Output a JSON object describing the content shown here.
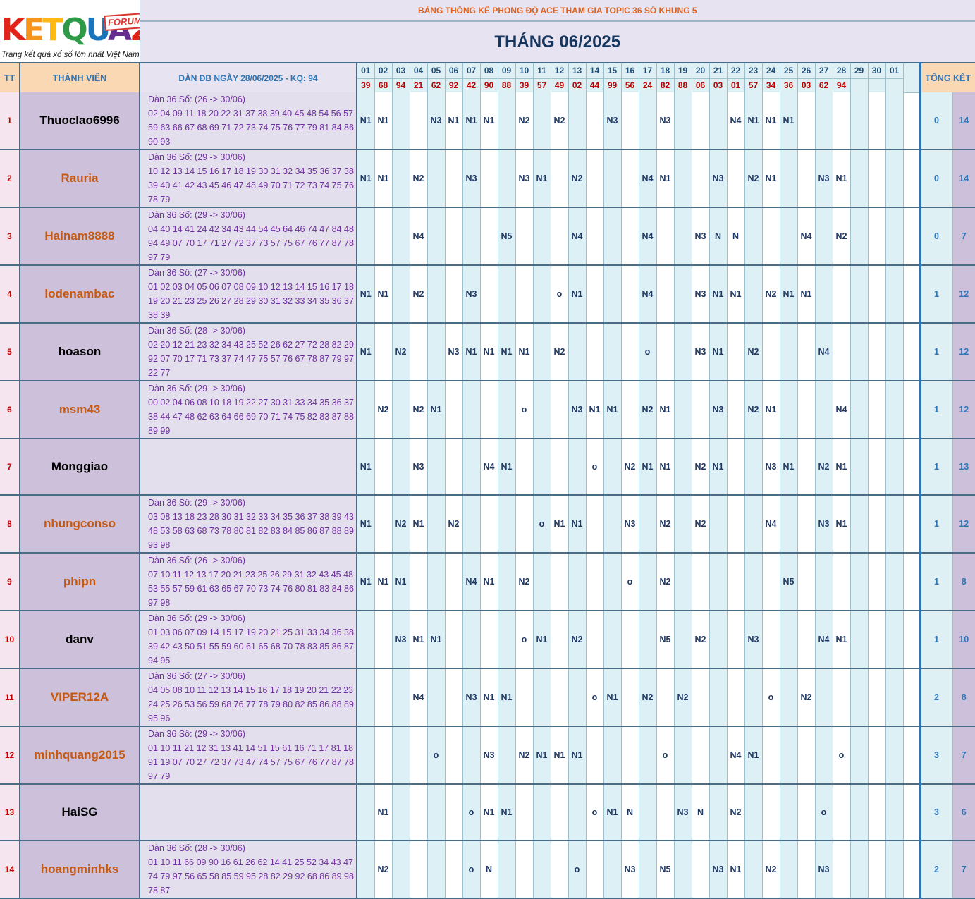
{
  "logo": {
    "letters": [
      "K",
      "E",
      "T",
      "Q",
      "U",
      "A",
      "2"
    ],
    "letter_colors": [
      "#e2231a",
      "#f7941d",
      "#fdb913",
      "#2e9a48",
      "#1b75bc",
      "#662d91",
      "#e2231a"
    ],
    "forum": "FORUM",
    "tagline": "Trang kết quả xổ số lớn nhất Việt Nam"
  },
  "title": "BẢNG THỐNG KÊ PHONG ĐỘ ACE THAM GIA TOPIC 36 SỐ KHUNG 5",
  "month": "THÁNG 06/2025",
  "headers": {
    "tt": "TT",
    "member": "THÀNH VIÊN",
    "dan": "DÀN ĐB NGÀY 28/06/2025 - KQ: 94",
    "summary": "TỔNG KẾT"
  },
  "days": [
    "01",
    "02",
    "03",
    "04",
    "05",
    "06",
    "07",
    "08",
    "09",
    "10",
    "11",
    "12",
    "13",
    "14",
    "15",
    "16",
    "17",
    "18",
    "19",
    "20",
    "21",
    "22",
    "23",
    "24",
    "25",
    "26",
    "27",
    "28",
    "29",
    "30",
    "01"
  ],
  "results": [
    "39",
    "68",
    "94",
    "21",
    "62",
    "92",
    "42",
    "90",
    "88",
    "39",
    "57",
    "49",
    "02",
    "44",
    "99",
    "56",
    "24",
    "82",
    "88",
    "06",
    "03",
    "01",
    "57",
    "34",
    "36",
    "03",
    "62",
    "94",
    "",
    "",
    ""
  ],
  "rows": [
    {
      "tt": "1",
      "name": "Thuoclao6996",
      "name_color": "#000000",
      "dan": [
        "Dàn 36 Số: (26 -> 30/06)",
        "02 04 09 11 18 20 22 31 37 38 39 40 45 48 54 56 57",
        "59 63 66 67 68 69 71 72 73 74 75 76 77 79 81 84 86",
        "90 93"
      ],
      "cells": [
        "N1",
        "N1",
        "",
        "",
        "N3",
        "N1",
        "N1",
        "N1",
        "",
        "N2",
        "",
        "N2",
        "",
        "",
        "N3",
        "",
        "",
        "N3",
        "",
        "",
        "",
        "N4",
        "N1",
        "N1",
        "N1",
        "",
        "",
        "",
        "",
        "",
        ""
      ],
      "s1": "0",
      "s2": "14"
    },
    {
      "tt": "2",
      "name": "Rauria",
      "name_color": "#c65911",
      "dan": [
        "Dàn 36 Số: (29 -> 30/06)",
        "10 12 13 14 15 16 17 18 19 30 31 32 34 35 36 37 38",
        "39 40 41 42 43 45 46 47 48 49 70 71 72 73 74 75 76",
        "78 79"
      ],
      "cells": [
        "N1",
        "N1",
        "",
        "N2",
        "",
        "",
        "N3",
        "",
        "",
        "N3",
        "N1",
        "",
        "N2",
        "",
        "",
        "",
        "N4",
        "N1",
        "",
        "",
        "N3",
        "",
        "N2",
        "N1",
        "",
        "",
        "N3",
        "N1",
        "",
        "",
        ""
      ],
      "s1": "0",
      "s2": "14"
    },
    {
      "tt": "3",
      "name": "Hainam8888",
      "name_color": "#c65911",
      "dan": [
        "Dàn 36 Số: (29 -> 30/06)",
        "04 40 14 41 24 42 34 43 44 54 45 64 46 74 47 84 48",
        "94 49 07 70 17 71 27 72 37 73 57 75 67 76 77 87 78",
        "97 79"
      ],
      "cells": [
        "",
        "",
        "",
        "N4",
        "",
        "",
        "",
        "",
        "N5",
        "",
        "",
        "",
        "N4",
        "",
        "",
        "",
        "N4",
        "",
        "",
        "N3",
        "N",
        "N",
        "",
        "",
        "",
        "N4",
        "",
        "N2",
        "",
        "",
        ""
      ],
      "s1": "0",
      "s2": "7"
    },
    {
      "tt": "4",
      "name": "lodenambac",
      "name_color": "#c65911",
      "dan": [
        "Dàn 36 Số: (27 -> 30/06)",
        "01 02 03 04 05 06 07 08 09 10 12 13 14 15 16 17 18",
        "19 20 21 23 25 26 27 28 29 30 31 32 33 34 35 36 37",
        "38 39"
      ],
      "cells": [
        "N1",
        "N1",
        "",
        "N2",
        "",
        "",
        "N3",
        "",
        "",
        "",
        "",
        "o",
        "N1",
        "",
        "",
        "",
        "N4",
        "",
        "",
        "N3",
        "N1",
        "N1",
        "",
        "N2",
        "N1",
        "N1",
        "",
        "",
        "",
        "",
        ""
      ],
      "s1": "1",
      "s2": "12"
    },
    {
      "tt": "5",
      "name": "hoason",
      "name_color": "#000000",
      "dan": [
        "Dàn 36 Số: (28 -> 30/06)",
        "02 20 12 21 23 32 34 43 25 52 26 62 27 72 28 82 29",
        "92 07 70 17 71 73 37 74 47 75 57 76 67 78 87 79 97",
        "22 77"
      ],
      "cells": [
        "N1",
        "",
        "N2",
        "",
        "",
        "N3",
        "N1",
        "N1",
        "N1",
        "N1",
        "",
        "N2",
        "",
        "",
        "",
        "",
        "o",
        "",
        "",
        "N3",
        "N1",
        "",
        "N2",
        "",
        "",
        "",
        "N4",
        "",
        "",
        "",
        ""
      ],
      "s1": "1",
      "s2": "12"
    },
    {
      "tt": "6",
      "name": "msm43",
      "name_color": "#c65911",
      "dan": [
        "Dàn 36 Số: (29 -> 30/06)",
        "00 02 04 06 08 10 18 19 22 27 30 31 33 34 35 36 37",
        "38 44 47 48 62 63 64 66 69 70 71 74 75 82 83 87 88",
        "89 99"
      ],
      "cells": [
        "",
        "N2",
        "",
        "N2",
        "N1",
        "",
        "",
        "",
        "",
        "o",
        "",
        "",
        "N3",
        "N1",
        "N1",
        "",
        "N2",
        "N1",
        "",
        "",
        "N3",
        "",
        "N2",
        "N1",
        "",
        "",
        "",
        "N4",
        "",
        "",
        ""
      ],
      "s1": "1",
      "s2": "12"
    },
    {
      "tt": "7",
      "name": "Monggiao",
      "name_color": "#000000",
      "dan": [],
      "cells": [
        "N1",
        "",
        "",
        "N3",
        "",
        "",
        "",
        "N4",
        "N1",
        "",
        "",
        "",
        "",
        "o",
        "",
        "N2",
        "N1",
        "N1",
        "",
        "N2",
        "N1",
        "",
        "",
        "N3",
        "N1",
        "",
        "N2",
        "N1",
        "",
        "",
        ""
      ],
      "s1": "1",
      "s2": "13"
    },
    {
      "tt": "8",
      "name": "nhungconso",
      "name_color": "#c65911",
      "dan": [
        "Dàn 36 Số: (29 -> 30/06)",
        "03 08 13 18 23 28 30 31 32 33 34 35 36 37 38 39 43",
        "48 53 58 63 68 73 78 80 81 82 83 84 85 86 87 88 89",
        "93 98"
      ],
      "cells": [
        "N1",
        "",
        "N2",
        "N1",
        "",
        "N2",
        "",
        "",
        "",
        "",
        "o",
        "N1",
        "N1",
        "",
        "",
        "N3",
        "",
        "N2",
        "",
        "N2",
        "",
        "",
        "",
        "N4",
        "",
        "",
        "N3",
        "N1",
        "",
        "",
        ""
      ],
      "s1": "1",
      "s2": "12"
    },
    {
      "tt": "9",
      "name": "phipn",
      "name_color": "#c65911",
      "dan": [
        "Dàn 36 Số: (26 -> 30/06)",
        "07 10 11 12 13 17 20 21 23 25 26 29 31 32 43 45 48",
        "53 55 57 59 61 63 65 67 70 73 74 76 80 81 83 84 86",
        "97 98"
      ],
      "cells": [
        "N1",
        "N1",
        "N1",
        "",
        "",
        "",
        "N4",
        "N1",
        "",
        "N2",
        "",
        "",
        "",
        "",
        "",
        "o",
        "",
        "N2",
        "",
        "",
        "",
        "",
        "",
        "",
        "N5",
        "",
        "",
        "",
        "",
        "",
        ""
      ],
      "s1": "1",
      "s2": "8"
    },
    {
      "tt": "10",
      "name": "danv",
      "name_color": "#000000",
      "dan": [
        "Dàn 36 Số: (29 -> 30/06)",
        "01 03 06 07 09 14 15 17 19 20 21 25 31 33 34 36 38",
        "39 42 43 50 51 55 59 60 61 65 68 70 78 83 85 86 87",
        "94 95"
      ],
      "cells": [
        "",
        "",
        "N3",
        "N1",
        "N1",
        "",
        "",
        "",
        "",
        "o",
        "N1",
        "",
        "N2",
        "",
        "",
        "",
        "",
        "N5",
        "",
        "N2",
        "",
        "",
        "N3",
        "",
        "",
        "",
        "N4",
        "N1",
        "",
        "",
        ""
      ],
      "s1": "1",
      "s2": "10"
    },
    {
      "tt": "11",
      "name": "VIPER12A",
      "name_color": "#c65911",
      "dan": [
        "Dàn 36 Số: (27 -> 30/06)",
        "04 05 08 10 11 12 13 14 15 16 17 18 19 20 21 22 23",
        "24 25 26 53 56 59 68 76 77 78 79 80 82 85 86 88 89",
        "95 96"
      ],
      "cells": [
        "",
        "",
        "",
        "N4",
        "",
        "",
        "N3",
        "N1",
        "N1",
        "",
        "",
        "",
        "",
        "o",
        "N1",
        "",
        "N2",
        "",
        "N2",
        "",
        "",
        "",
        "",
        "o",
        "",
        "N2",
        "",
        "",
        "",
        "",
        ""
      ],
      "s1": "2",
      "s2": "8"
    },
    {
      "tt": "12",
      "name": "minhquang2015",
      "name_color": "#c65911",
      "dan": [
        "Dàn 36 Số: (29 -> 30/06)",
        "01 10 11 21 12 31 13 41 14 51 15 61 16 71 17 81 18",
        "91 19 07 70 27 72 37 73 47 74 57 75 67 76 77 87 78",
        "97 79"
      ],
      "cells": [
        "",
        "",
        "",
        "",
        "o",
        "",
        "",
        "N3",
        "",
        "N2",
        "N1",
        "N1",
        "N1",
        "",
        "",
        "",
        "",
        "o",
        "",
        "",
        "",
        "N4",
        "N1",
        "",
        "",
        "",
        "",
        "o",
        "",
        "",
        ""
      ],
      "s1": "3",
      "s2": "7"
    },
    {
      "tt": "13",
      "name": "HaiSG",
      "name_color": "#000000",
      "dan": [],
      "cells": [
        "",
        "N1",
        "",
        "",
        "",
        "",
        "o",
        "N1",
        "N1",
        "",
        "",
        "",
        "",
        "o",
        "N1",
        "N",
        "",
        "",
        "N3",
        "N",
        "",
        "N2",
        "",
        "",
        "",
        "",
        "o",
        "",
        "",
        "",
        ""
      ],
      "s1": "3",
      "s2": "6"
    },
    {
      "tt": "14",
      "name": "hoangminhks",
      "name_color": "#c65911",
      "dan": [
        "Dàn 36 Số: (28 -> 30/06)",
        "01 10 11 66 09 90 16 61 26 62 14 41 25 52 34 43 47",
        "74 79 97 56 65 58 85 59 95 28 82 29 92 68 86 89 98",
        "78 87"
      ],
      "cells": [
        "",
        "N2",
        "",
        "",
        "",
        "",
        "o",
        "N",
        "",
        "",
        "",
        "",
        "o",
        "",
        "",
        "N3",
        "",
        "N5",
        "",
        "",
        "N3",
        "N1",
        "",
        "N2",
        "",
        "",
        "N3",
        "",
        "",
        "",
        ""
      ],
      "s1": "2",
      "s2": "7"
    }
  ]
}
